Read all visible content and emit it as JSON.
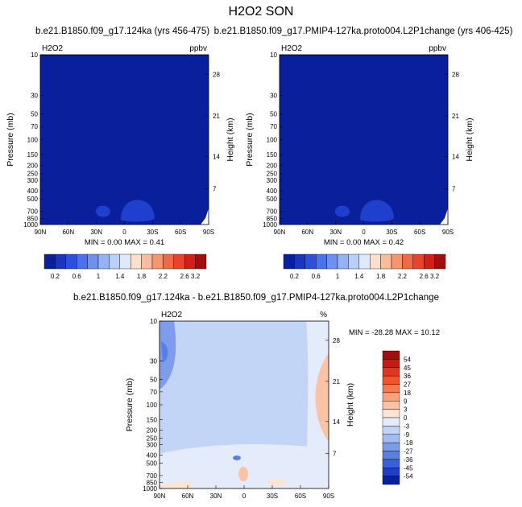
{
  "title": "H2O2 SON",
  "colors": {
    "field_dark_blue": "#0a1f9c",
    "field_blob_blue": "#1f3fcf"
  },
  "chart_data": [
    {
      "type": "heatmap",
      "panel_title": "b.e21.B1850.f09_g17.124ka (yrs 456-475)",
      "variable": "H2O2",
      "units": "ppbv",
      "ylabel": "Pressure (mb)",
      "ylabel_right": "Height (km)",
      "x_ticks": [
        "90N",
        "60N",
        "30N",
        "0",
        "30S",
        "60S",
        "90S"
      ],
      "y_ticks": [
        10,
        30,
        50,
        70,
        100,
        150,
        200,
        250,
        300,
        400,
        500,
        700,
        850,
        1000
      ],
      "y_ticks_right": [
        28,
        21,
        14,
        7
      ],
      "min_label": "MIN =  0.00   MAX =  0.41",
      "colorbar": {
        "orientation": "horizontal",
        "labels": [
          "0.2",
          "0.6",
          "1",
          "1.4",
          "1.8",
          "2.2",
          "2.6",
          "3.2"
        ],
        "colors": [
          "#0a1f9c",
          "#1b35c0",
          "#2b50dc",
          "#4a72ea",
          "#6d91f1",
          "#93b3f6",
          "#b9d0fa",
          "#dfe9fc",
          "#fde0cc",
          "#f9bd9d",
          "#f5966f",
          "#f06a45",
          "#e9432a",
          "#d41f18",
          "#a40d0d"
        ]
      }
    },
    {
      "type": "heatmap",
      "panel_title": "b.e21.B1850.f09_g17.PMIP4-127ka.proto004.L2P1change (yrs 406-425)",
      "variable": "H2O2",
      "units": "ppbv",
      "ylabel": "Pressure (mb)",
      "ylabel_right": "Height (km)",
      "x_ticks": [
        "90N",
        "60N",
        "30N",
        "0",
        "30S",
        "60S",
        "90S"
      ],
      "y_ticks": [
        10,
        30,
        50,
        70,
        100,
        150,
        200,
        250,
        300,
        400,
        500,
        700,
        850,
        1000
      ],
      "y_ticks_right": [
        28,
        21,
        14,
        7
      ],
      "min_label": "MIN =  0.00   MAX =  0.42",
      "colorbar": {
        "orientation": "horizontal",
        "labels": [
          "0.2",
          "0.6",
          "1",
          "1.4",
          "1.8",
          "2.2",
          "2.6",
          "3.2"
        ],
        "colors": [
          "#0a1f9c",
          "#1b35c0",
          "#2b50dc",
          "#4a72ea",
          "#6d91f1",
          "#93b3f6",
          "#b9d0fa",
          "#dfe9fc",
          "#fde0cc",
          "#f9bd9d",
          "#f5966f",
          "#f06a45",
          "#e9432a",
          "#d41f18",
          "#a40d0d"
        ]
      }
    },
    {
      "type": "heatmap",
      "panel_title": "b.e21.B1850.f09_g17.124ka - b.e21.B1850.f09_g17.PMIP4-127ka.proto004.L2P1change",
      "variable": "H2O2",
      "units": "%",
      "ylabel": "Pressure (mb)",
      "ylabel_right": "Height (km)",
      "x_ticks": [
        "90N",
        "60N",
        "30N",
        "0",
        "30S",
        "60S",
        "90S"
      ],
      "y_ticks": [
        10,
        30,
        50,
        70,
        100,
        150,
        200,
        250,
        300,
        400,
        500,
        700,
        850,
        1000
      ],
      "y_ticks_right": [
        28,
        21,
        14,
        7
      ],
      "min_label": "MIN = -28.28   MAX =  10.12",
      "colorbar": {
        "orientation": "vertical",
        "labels": [
          "54",
          "45",
          "36",
          "27",
          "18",
          "9",
          "3",
          "0",
          "-3",
          "-9",
          "-18",
          "-27",
          "-36",
          "-45",
          "-54"
        ],
        "colors": [
          "#a40d0d",
          "#c81a14",
          "#e2351f",
          "#f0552f",
          "#f57a52",
          "#f9a07c",
          "#fbc3a6",
          "#fde3d1",
          "#e4ecfb",
          "#c3d5f7",
          "#a2bcf2",
          "#7d9cec",
          "#5a7fe4",
          "#3a5fda",
          "#1e3fc6",
          "#0a1f9c"
        ]
      }
    }
  ]
}
